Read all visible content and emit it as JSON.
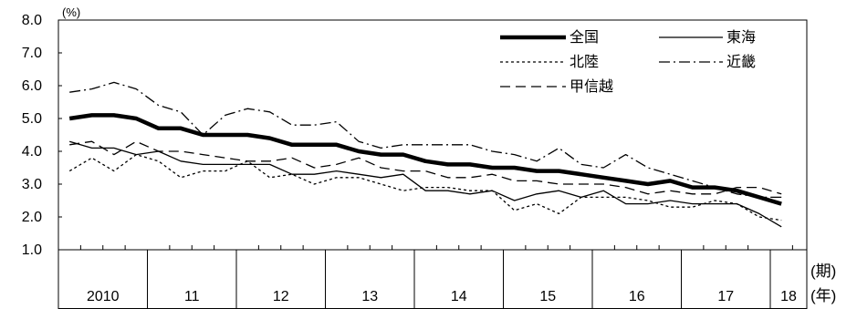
{
  "chart_data": {
    "type": "line",
    "unit_label": "(%)",
    "ylim": [
      1.0,
      8.0
    ],
    "yticks": [
      "8.0",
      "7.0",
      "6.0",
      "5.0",
      "4.0",
      "3.0",
      "2.0",
      "1.0"
    ],
    "quarters_per_year": 4,
    "x_label_period": "(期)",
    "x_label_year": "(年)",
    "year_labels": [
      "2010",
      "11",
      "12",
      "13",
      "14",
      "15",
      "16",
      "17",
      "18"
    ],
    "series": [
      {
        "name": "全国",
        "style": "thick",
        "color": "#000000",
        "values": [
          5.0,
          5.1,
          5.1,
          5.0,
          4.7,
          4.7,
          4.5,
          4.5,
          4.5,
          4.4,
          4.2,
          4.2,
          4.2,
          4.0,
          3.9,
          3.9,
          3.7,
          3.6,
          3.6,
          3.5,
          3.5,
          3.4,
          3.4,
          3.3,
          3.2,
          3.1,
          3.0,
          3.1,
          2.9,
          2.9,
          2.8,
          2.6,
          2.4
        ]
      },
      {
        "name": "東海",
        "style": "solid",
        "color": "#000000",
        "values": [
          4.3,
          4.1,
          4.1,
          3.9,
          4.0,
          3.7,
          3.6,
          3.6,
          3.6,
          3.6,
          3.3,
          3.3,
          3.4,
          3.3,
          3.2,
          3.3,
          2.8,
          2.8,
          2.7,
          2.8,
          2.5,
          2.7,
          2.8,
          2.6,
          2.8,
          2.4,
          2.4,
          2.5,
          2.4,
          2.4,
          2.4,
          2.1,
          1.7
        ]
      },
      {
        "name": "北陸",
        "style": "dotted",
        "color": "#000000",
        "values": [
          3.4,
          3.8,
          3.4,
          3.9,
          3.7,
          3.2,
          3.4,
          3.4,
          3.7,
          3.2,
          3.3,
          3.0,
          3.2,
          3.2,
          3.0,
          2.8,
          2.9,
          2.9,
          2.8,
          2.8,
          2.2,
          2.4,
          2.1,
          2.6,
          2.6,
          2.6,
          2.5,
          2.3,
          2.3,
          2.5,
          2.4,
          2.0,
          1.9
        ]
      },
      {
        "name": "近畿",
        "style": "dashdot",
        "color": "#000000",
        "values": [
          5.8,
          5.9,
          6.1,
          5.9,
          5.4,
          5.2,
          4.5,
          5.1,
          5.3,
          5.2,
          4.8,
          4.8,
          4.9,
          4.3,
          4.1,
          4.2,
          4.2,
          4.2,
          4.2,
          4.0,
          3.9,
          3.7,
          4.1,
          3.6,
          3.5,
          3.9,
          3.5,
          3.3,
          3.1,
          2.9,
          2.7,
          2.6,
          2.6
        ]
      },
      {
        "name": "甲信越",
        "style": "dashed",
        "color": "#000000",
        "values": [
          4.2,
          4.3,
          3.9,
          4.3,
          4.0,
          4.0,
          3.9,
          3.8,
          3.7,
          3.7,
          3.8,
          3.5,
          3.6,
          3.8,
          3.5,
          3.4,
          3.4,
          3.2,
          3.2,
          3.3,
          3.1,
          3.1,
          3.0,
          3.0,
          3.0,
          2.9,
          2.7,
          2.8,
          2.7,
          2.7,
          2.9,
          2.9,
          2.7
        ]
      }
    ],
    "legend_position": "top-right",
    "grid": false
  }
}
